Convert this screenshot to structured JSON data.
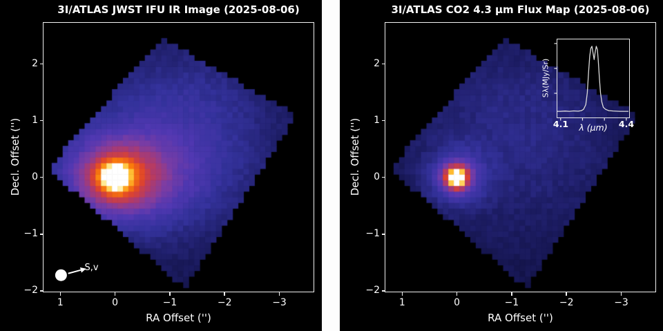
{
  "figure": {
    "background": "#000000",
    "divider_color": "#fdfdfd"
  },
  "chart_data": [
    {
      "type": "heatmap",
      "panel": "left",
      "title": "3I/ATLAS JWST IFU IR Image (2025-08-06)",
      "xlabel": "RA Offset ('')",
      "ylabel": "Decl. Offset ('')",
      "xlim": [
        1.3,
        -3.63
      ],
      "ylim": [
        -2.02,
        2.72
      ],
      "xticks": [
        1,
        0,
        -1,
        -2,
        -3
      ],
      "xtick_labels": [
        "1",
        "0",
        "−1",
        "−2",
        "−3"
      ],
      "yticks": [
        2,
        1,
        0,
        -1,
        -2
      ],
      "ytick_labels": [
        "2",
        "1",
        "0",
        "−1",
        "−2"
      ],
      "grid": false,
      "peak_offset_arcsec": [
        0,
        0
      ],
      "annotation": {
        "label": "S,v",
        "circle_center": [
          0.98,
          -1.73
        ],
        "circle_radius_px": 8.5,
        "arrow_from": [
          0.85,
          -1.7
        ],
        "arrow_to": [
          0.62,
          -1.64
        ],
        "label_anchor": [
          0.55,
          -1.6
        ]
      },
      "model": {
        "spaxel_arcsec": 0.1,
        "base": 0.16,
        "footprint_corners": [
          [
            -0.85,
            2.45
          ],
          [
            -3.3,
            1.1
          ],
          [
            -1.27,
            -1.95
          ],
          [
            1.22,
            0.15
          ]
        ],
        "gaussians": [
          {
            "a": 0.13,
            "x": -1.0,
            "y": 0.45,
            "sx": 1.7,
            "sy": 1.35
          },
          {
            "a": 0.06,
            "x": -1.4,
            "y": 1.4,
            "sx": 1.1,
            "sy": 0.8
          },
          {
            "a": 0.24,
            "x": -0.25,
            "y": 0.0,
            "sx": 0.95,
            "sy": 0.6
          },
          {
            "a": 0.28,
            "x": -0.05,
            "y": 0.0,
            "sx": 0.5,
            "sy": 0.4
          },
          {
            "a": 0.33,
            "x": 0.0,
            "y": 0.0,
            "sx": 0.22,
            "sy": 0.2
          },
          {
            "a": 0.62,
            "x": 0.0,
            "y": 0.0,
            "sx": 0.11,
            "sy": 0.1
          }
        ]
      }
    },
    {
      "type": "heatmap",
      "panel": "right",
      "title": "3I/ATLAS CO2 4.3 µm Flux Map (2025-08-06)",
      "xlabel": "RA Offset ('')",
      "ylabel": "Decl. Offset ('')",
      "xlim": [
        1.3,
        -3.63
      ],
      "ylim": [
        -2.02,
        2.72
      ],
      "xticks": [
        1,
        0,
        -1,
        -2,
        -3
      ],
      "xtick_labels": [
        "1",
        "0",
        "−1",
        "−2",
        "−3"
      ],
      "yticks": [
        2,
        1,
        0,
        -1,
        -2
      ],
      "ytick_labels": [
        "2",
        "1",
        "0",
        "−1",
        "−2"
      ],
      "grid": false,
      "peak_offset_arcsec": [
        0,
        0
      ],
      "model": {
        "spaxel_arcsec": 0.1,
        "base": 0.15,
        "footprint_corners": [
          [
            -0.85,
            2.45
          ],
          [
            -3.3,
            1.1
          ],
          [
            -1.27,
            -1.95
          ],
          [
            1.22,
            0.15
          ]
        ],
        "gaussians": [
          {
            "a": 0.1,
            "x": -1.0,
            "y": 0.35,
            "sx": 1.7,
            "sy": 1.35
          },
          {
            "a": 0.05,
            "x": -1.2,
            "y": 1.5,
            "sx": 1.2,
            "sy": 1.0
          },
          {
            "a": 0.2,
            "x": 0.0,
            "y": 0.0,
            "sx": 0.38,
            "sy": 0.34
          },
          {
            "a": 0.45,
            "x": 0.0,
            "y": 0.0,
            "sx": 0.17,
            "sy": 0.16
          },
          {
            "a": 0.5,
            "x": 0.0,
            "y": 0.0,
            "sx": 0.1,
            "sy": 0.095
          }
        ]
      },
      "inset": {
        "type": "line",
        "xlabel": "λ (µm)",
        "ylabel": "Sλ(MJy/Sr)",
        "xlim": [
          4.085,
          4.413
        ],
        "xticks": [
          4.1,
          4.2,
          4.3,
          4.4
        ],
        "xtick_labels": [
          "4.1",
          "",
          "",
          "4.4"
        ],
        "line_color": "#dcdcdc",
        "x": [
          4.085,
          4.1,
          4.12,
          4.14,
          4.16,
          4.18,
          4.195,
          4.205,
          4.215,
          4.222,
          4.228,
          4.233,
          4.238,
          4.243,
          4.248,
          4.253,
          4.258,
          4.263,
          4.268,
          4.272,
          4.277,
          4.282,
          4.288,
          4.295,
          4.305,
          4.32,
          4.34,
          4.37,
          4.41
        ],
        "y": [
          0.02,
          0.02,
          0.024,
          0.02,
          0.026,
          0.022,
          0.03,
          0.05,
          0.12,
          0.3,
          0.62,
          0.85,
          0.97,
          1.0,
          0.9,
          0.8,
          0.92,
          1.0,
          0.95,
          0.78,
          0.52,
          0.3,
          0.16,
          0.08,
          0.05,
          0.03,
          0.025,
          0.02,
          0.02
        ]
      }
    }
  ],
  "render": {
    "colormap": [
      [
        0.0,
        "#000004"
      ],
      [
        0.12,
        "#0d0d35"
      ],
      [
        0.22,
        "#1c1c62"
      ],
      [
        0.32,
        "#34329c"
      ],
      [
        0.42,
        "#5138b2"
      ],
      [
        0.52,
        "#7e3da2"
      ],
      [
        0.62,
        "#b23a68"
      ],
      [
        0.72,
        "#e0442a"
      ],
      [
        0.82,
        "#fb7d0a"
      ],
      [
        0.9,
        "#ffbe32"
      ],
      [
        0.96,
        "#ffe98e"
      ],
      [
        1.0,
        "#ffffff"
      ]
    ],
    "noise_amp": 0.04
  }
}
